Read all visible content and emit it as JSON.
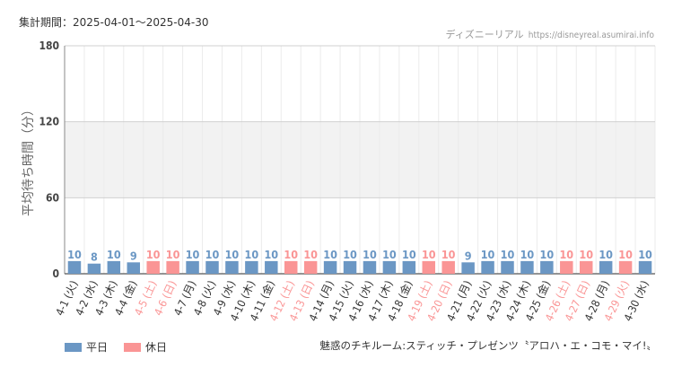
{
  "header": {
    "period": "集計期間：2025-04-01～2025-04-30",
    "source_name": "ディズニーリアル",
    "source_url": "https://disneyreal.asumirai.info"
  },
  "footer": {
    "attraction": "魅惑のチキルーム:スティッチ・プレゼンツ〝アロハ・エ・コモ・マイ!〟"
  },
  "colors": {
    "weekday": "#6b97c4",
    "holiday": "#fa9595",
    "band": "#f2f2f2",
    "grid": "#d0d0d0"
  },
  "chart_data": {
    "type": "bar",
    "ylabel": "平均待ち時間（分）",
    "ylim": [
      0,
      180
    ],
    "yticks": [
      0,
      60,
      120,
      180
    ],
    "legend": [
      {
        "name": "平日",
        "color": "#6b97c4"
      },
      {
        "name": "休日",
        "color": "#fa9595"
      }
    ],
    "legend_position": "bottom-left",
    "categories": [
      "4-1 (火)",
      "4-2 (水)",
      "4-3 (木)",
      "4-4 (金)",
      "4-5 (土)",
      "4-6 (日)",
      "4-7 (月)",
      "4-8 (火)",
      "4-9 (水)",
      "4-10 (木)",
      "4-11 (金)",
      "4-12 (土)",
      "4-13 (日)",
      "4-14 (月)",
      "4-15 (火)",
      "4-16 (水)",
      "4-17 (木)",
      "4-18 (金)",
      "4-19 (土)",
      "4-20 (日)",
      "4-21 (月)",
      "4-22 (火)",
      "4-23 (水)",
      "4-24 (木)",
      "4-25 (金)",
      "4-26 (土)",
      "4-27 (日)",
      "4-28 (月)",
      "4-29 (火)",
      "4-30 (水)"
    ],
    "values": [
      10,
      8,
      10,
      9,
      10,
      10,
      10,
      10,
      10,
      10,
      10,
      10,
      10,
      10,
      10,
      10,
      10,
      10,
      10,
      10,
      9,
      10,
      10,
      10,
      10,
      10,
      10,
      10,
      10,
      10
    ],
    "holiday": [
      false,
      false,
      false,
      false,
      true,
      true,
      false,
      false,
      false,
      false,
      false,
      true,
      true,
      false,
      false,
      false,
      false,
      false,
      true,
      true,
      false,
      false,
      false,
      false,
      false,
      true,
      true,
      false,
      true,
      false
    ]
  }
}
